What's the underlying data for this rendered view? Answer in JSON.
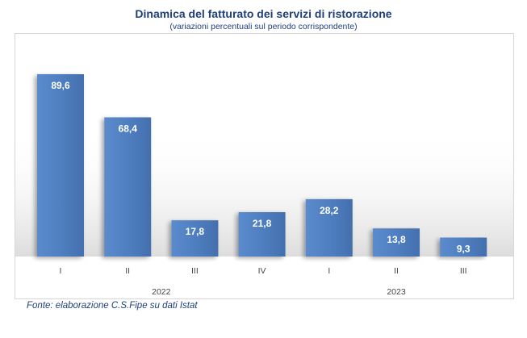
{
  "title": "Dinamica del fatturato dei servizi di ristorazione",
  "subtitle": "(variazioni percentuali sul periodo corrispondente)",
  "source": "Fonte: elaborazione C.S.Fipe su dati Istat",
  "colors": {
    "bar": "#4f7fc0",
    "title": "#1f3f7a",
    "label": "#ffffff",
    "axis_text": "#444444"
  },
  "chart_data": {
    "type": "bar",
    "categories": [
      "I",
      "II",
      "III",
      "IV",
      "I",
      "II",
      "III"
    ],
    "groups": [
      {
        "label": "2022",
        "from": 0,
        "to": 3
      },
      {
        "label": "2023",
        "from": 4,
        "to": 6
      }
    ],
    "series": [
      {
        "values": [
          89.6,
          68.4,
          17.8,
          21.8,
          28.2,
          13.8,
          9.3
        ]
      }
    ],
    "value_labels": [
      "89,6",
      "68,4",
      "17,8",
      "21,8",
      "28,2",
      "13,8",
      "9,3"
    ],
    "ylim": [
      0,
      90
    ],
    "xlabel": "",
    "ylabel": "",
    "grid": false,
    "legend": "none"
  }
}
